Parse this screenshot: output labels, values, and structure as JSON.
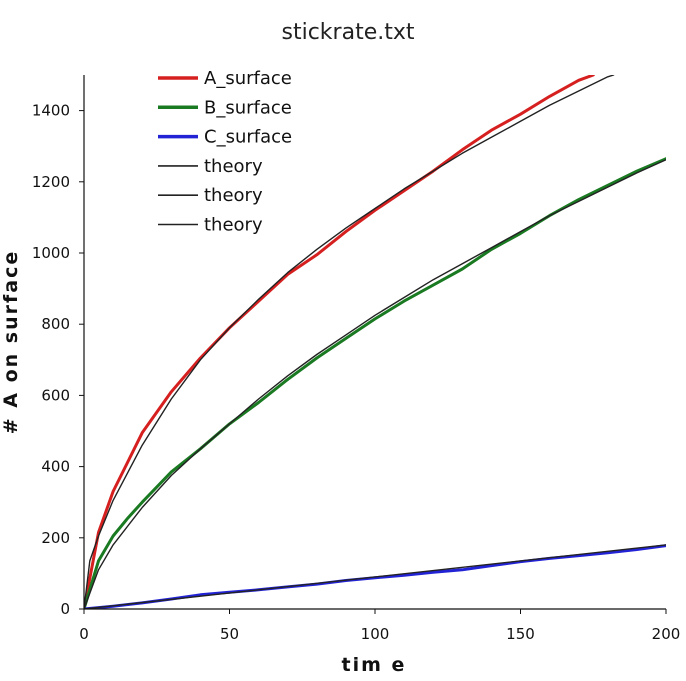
{
  "chart_data": {
    "type": "line",
    "title": "stickrate.txt",
    "xlabel": "tim e",
    "ylabel": "# A on surface",
    "xlim": [
      0,
      200
    ],
    "ylim": [
      0,
      1500
    ],
    "x_ticks": [
      0,
      50,
      100,
      150,
      200
    ],
    "y_ticks": [
      0,
      200,
      400,
      600,
      800,
      1000,
      1200,
      1400
    ],
    "grid": false,
    "legend_position": "top-left",
    "series": [
      {
        "name": "A_surface",
        "color": "#d62020",
        "style": "thick",
        "x": [
          0,
          5,
          10,
          20,
          30,
          40,
          50,
          60,
          70,
          80,
          90,
          100,
          110,
          120,
          130,
          140,
          150,
          160,
          170,
          175
        ],
        "y": [
          0,
          215,
          330,
          495,
          610,
          705,
          790,
          865,
          940,
          995,
          1060,
          1120,
          1175,
          1230,
          1290,
          1345,
          1390,
          1440,
          1485,
          1500
        ]
      },
      {
        "name": "B_surface",
        "color": "#1a7a22",
        "style": "thick",
        "x": [
          0,
          5,
          10,
          15,
          20,
          30,
          40,
          50,
          60,
          70,
          80,
          90,
          100,
          110,
          120,
          130,
          140,
          150,
          160,
          170,
          180,
          190,
          200
        ],
        "y": [
          0,
          135,
          205,
          255,
          300,
          385,
          450,
          520,
          580,
          645,
          705,
          760,
          815,
          865,
          910,
          955,
          1010,
          1055,
          1105,
          1150,
          1190,
          1230,
          1265
        ]
      },
      {
        "name": "C_surface",
        "color": "#2323d6",
        "style": "thick",
        "x": [
          0,
          10,
          20,
          30,
          40,
          50,
          60,
          70,
          80,
          90,
          100,
          110,
          120,
          130,
          140,
          150,
          160,
          170,
          180,
          190,
          200
        ],
        "y": [
          0,
          8,
          17,
          28,
          40,
          47,
          54,
          62,
          70,
          80,
          88,
          95,
          103,
          110,
          122,
          133,
          142,
          150,
          158,
          167,
          178
        ]
      },
      {
        "name": "theory",
        "color": "#222222",
        "style": "thin",
        "x": [
          0,
          2,
          5,
          10,
          20,
          30,
          40,
          50,
          60,
          70,
          80,
          90,
          100,
          110,
          120,
          130,
          140,
          150,
          160,
          170,
          180,
          182
        ],
        "y": [
          0,
          135,
          205,
          305,
          460,
          590,
          700,
          790,
          870,
          945,
          1010,
          1070,
          1125,
          1180,
          1230,
          1280,
          1325,
          1370,
          1415,
          1455,
          1495,
          1500
        ]
      },
      {
        "name": "theory",
        "color": "#222222",
        "style": "thin",
        "x": [
          0,
          5,
          10,
          20,
          30,
          40,
          50,
          60,
          70,
          80,
          90,
          100,
          110,
          120,
          130,
          140,
          150,
          160,
          170,
          180,
          190,
          200
        ],
        "y": [
          0,
          110,
          180,
          285,
          375,
          450,
          520,
          590,
          655,
          715,
          770,
          825,
          875,
          925,
          970,
          1015,
          1060,
          1105,
          1145,
          1185,
          1225,
          1262
        ]
      },
      {
        "name": "theory",
        "color": "#222222",
        "style": "thin",
        "x": [
          0,
          200
        ],
        "y": [
          0,
          180
        ]
      }
    ]
  }
}
